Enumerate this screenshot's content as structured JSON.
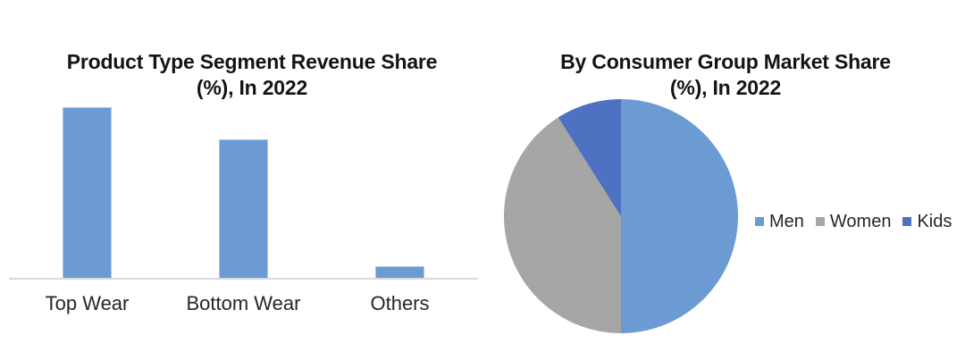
{
  "page": {
    "background_color": "#FFFFFF",
    "text_color": "#262626",
    "title_color": "#141414"
  },
  "chart_data": [
    {
      "type": "bar",
      "title": "Product Type Segment Revenue Share (%), In 2022",
      "title_lines": [
        "Product Type Segment Revenue Share",
        "(%), In 2022"
      ],
      "categories": [
        "Top Wear",
        "Bottom Wear",
        "Others"
      ],
      "values": [
        53,
        43,
        4
      ],
      "unit": "%",
      "xlabel": "",
      "ylabel": "",
      "ylim": [
        0,
        60
      ],
      "gridlines": false,
      "y_axis_labels_visible": false,
      "data_labels_visible": false,
      "legend_position": "none",
      "bar_color": "#6B9BD2",
      "axis_line_color": "#D9D9D9"
    },
    {
      "type": "pie",
      "title": "By Consumer Group Market Share (%), In 2022",
      "title_lines": [
        "By Consumer Group Market Share",
        "(%), In 2022"
      ],
      "labels": [
        "Men",
        "Women",
        "Kids"
      ],
      "values": [
        50,
        41,
        9
      ],
      "unit": "%",
      "colors": [
        "#6B9BD2",
        "#A6A6A6",
        "#4E71C2"
      ],
      "start_angle_deg": 0,
      "direction": "clockwise",
      "data_labels_visible": false,
      "legend_position": "right",
      "legend_swatch_names": [
        "men-legend-swatch",
        "women-legend-swatch",
        "kids-legend-swatch"
      ]
    }
  ]
}
